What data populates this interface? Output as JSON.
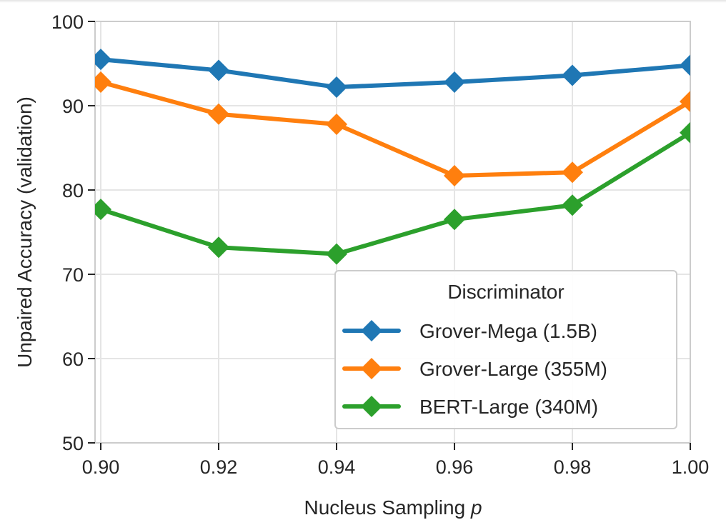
{
  "chart_data": {
    "type": "line",
    "title": "",
    "xlabel": "Nucleus Sampling",
    "xlabel_italic_suffix": "p",
    "ylabel": "Unpaired Accuracy (validation)",
    "x": [
      0.9,
      0.92,
      0.94,
      0.96,
      0.98,
      1.0
    ],
    "x_tick_labels": [
      "0.90",
      "0.92",
      "0.94",
      "0.96",
      "0.98",
      "1.00"
    ],
    "y_ticks": [
      50,
      60,
      70,
      80,
      90,
      100
    ],
    "y_tick_labels": [
      "50",
      "60",
      "70",
      "80",
      "90",
      "100"
    ],
    "xlim": [
      0.9,
      1.0
    ],
    "ylim": [
      50,
      100
    ],
    "grid": true,
    "marker": "diamond",
    "legend": {
      "title": "Discriminator",
      "placement": "lower-right"
    },
    "series": [
      {
        "name": "Grover-Mega (1.5B)",
        "color": "#1f77b4",
        "values": [
          95.5,
          94.2,
          92.2,
          92.8,
          93.6,
          94.8
        ]
      },
      {
        "name": "Grover-Large (355M)",
        "color": "#ff7f0e",
        "values": [
          92.8,
          89.0,
          87.8,
          81.7,
          82.1,
          90.5
        ]
      },
      {
        "name": "BERT-Large (340M)",
        "color": "#2ca02c",
        "values": [
          77.7,
          73.2,
          72.4,
          76.5,
          78.2,
          86.8
        ]
      }
    ]
  }
}
